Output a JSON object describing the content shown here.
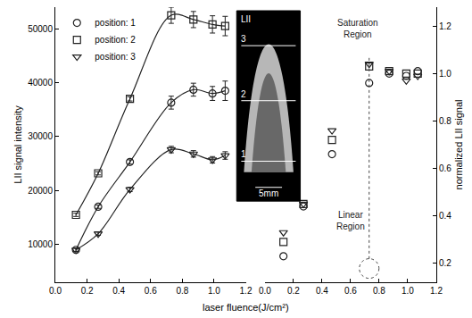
{
  "chart_data": [
    {
      "type": "line",
      "x_label": "laser fluence(J/cm²)",
      "y_label": "LII signal intensity",
      "x": [
        0.13,
        0.27,
        0.47,
        0.73,
        0.87,
        0.99,
        1.07
      ],
      "xlim": [
        0,
        1.2
      ],
      "xticks": [
        {
          "value": 0,
          "label": "0.0"
        },
        0.2,
        0.4,
        0.6,
        0.8,
        {
          "value": 1,
          "label": "1.0"
        },
        1.2
      ],
      "ylim": [
        3000,
        54000
      ],
      "yticks": [
        10000,
        20000,
        30000,
        40000,
        50000
      ],
      "grid": false,
      "legend": "upper left",
      "line_style": "solid",
      "series": [
        {
          "name": "position: 1",
          "color": "#222222",
          "marker": "circle-open",
          "values": [
            9000,
            17000,
            25300,
            36300,
            38700,
            38000,
            38500
          ],
          "errors": [
            300,
            300,
            400,
            1200,
            1200,
            1300,
            1800
          ]
        },
        {
          "name": "position: 2",
          "color": "#222222",
          "marker": "square-open",
          "values": [
            15500,
            23200,
            37000,
            52500,
            51700,
            50800,
            50500
          ],
          "errors": [
            300,
            300,
            400,
            1500,
            1500,
            1600,
            1800
          ]
        },
        {
          "name": "position: 3",
          "color": "#222222",
          "marker": "triangle-down-open",
          "values": [
            9000,
            12000,
            20200,
            27600,
            26800,
            25700,
            26500
          ],
          "errors": [
            300,
            300,
            400,
            600,
            600,
            600,
            700
          ]
        }
      ]
    },
    {
      "type": "scatter",
      "y_label": "normalized LII signal",
      "x": [
        0.13,
        0.27,
        0.47,
        0.73,
        0.87,
        0.99,
        1.07
      ],
      "xlim": [
        0,
        1.2
      ],
      "xticks": [
        {
          "value": 0,
          "label": "0.0"
        },
        0.2,
        0.4,
        0.6,
        0.8,
        {
          "value": 1,
          "label": "1.0"
        },
        1.2
      ],
      "ylim": [
        0.12,
        1.28
      ],
      "yticks": [
        0.2,
        0.4,
        0.6,
        0.8,
        {
          "value": 1,
          "label": "1.0"
        },
        1.2
      ],
      "grid": false,
      "series": [
        {
          "color": "#222222",
          "marker": "circle-open",
          "values": [
            0.23,
            0.44,
            0.66,
            0.96,
            1.0,
            0.99,
            1.01
          ]
        },
        {
          "color": "#222222",
          "marker": "square-open",
          "values": [
            0.29,
            0.45,
            0.72,
            1.03,
            1.01,
            1.0,
            1.0
          ]
        },
        {
          "color": "#222222",
          "marker": "triangle-down-open",
          "values": [
            0.33,
            0.45,
            0.76,
            1.04,
            1.01,
            0.97,
            0.99
          ]
        }
      ],
      "annotations": [
        {
          "text": "Saturation Region",
          "x": 0.65,
          "y": 1.19
        },
        {
          "text": "Linear Region",
          "x": 0.6,
          "y": 0.38
        }
      ],
      "marked_fluence": 0.73,
      "inset": {
        "title": "LII",
        "labels": [
          "1",
          "2",
          "3"
        ],
        "scale_bar": "5mm"
      }
    }
  ]
}
